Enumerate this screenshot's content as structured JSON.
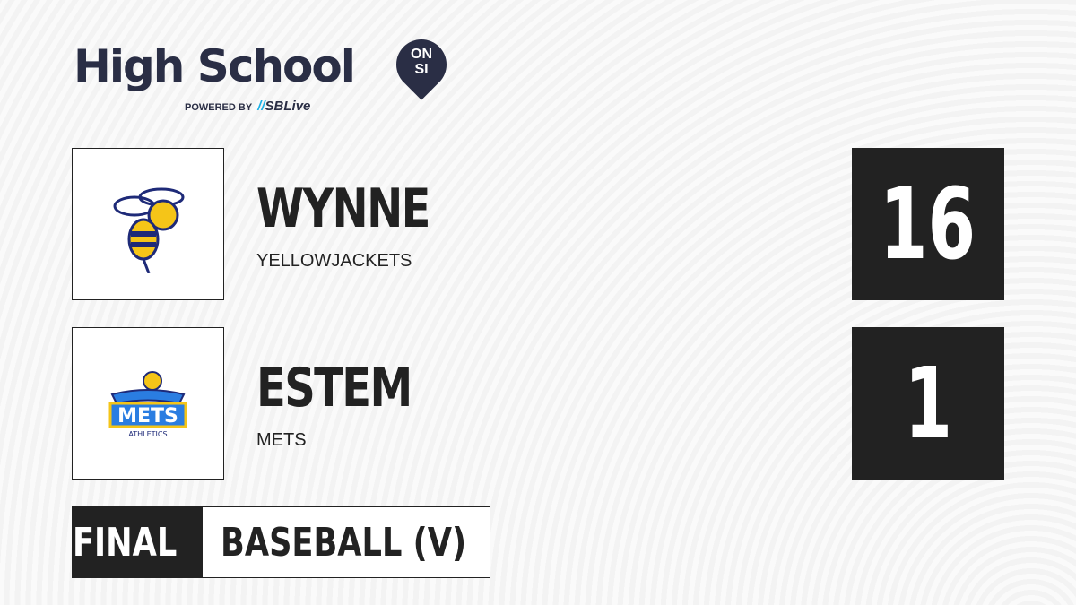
{
  "brand": {
    "title": "High School",
    "badge_top": "ON",
    "badge_bottom": "SI",
    "powered_by": "POWERED BY",
    "partner": "SBLive"
  },
  "teams": [
    {
      "name": "WYNNE",
      "mascot": "YELLOWJACKETS",
      "score": "16",
      "logo_colors": [
        "#f5c518",
        "#1e2a78"
      ]
    },
    {
      "name": "ESTEM",
      "mascot": "METS",
      "score": "1",
      "logo_text": "METS",
      "logo_subtext": "ATHLETICS",
      "logo_colors": [
        "#2a7de1",
        "#f5c518"
      ]
    }
  ],
  "game": {
    "status": "FINAL",
    "sport": "BASEBALL (V)"
  }
}
